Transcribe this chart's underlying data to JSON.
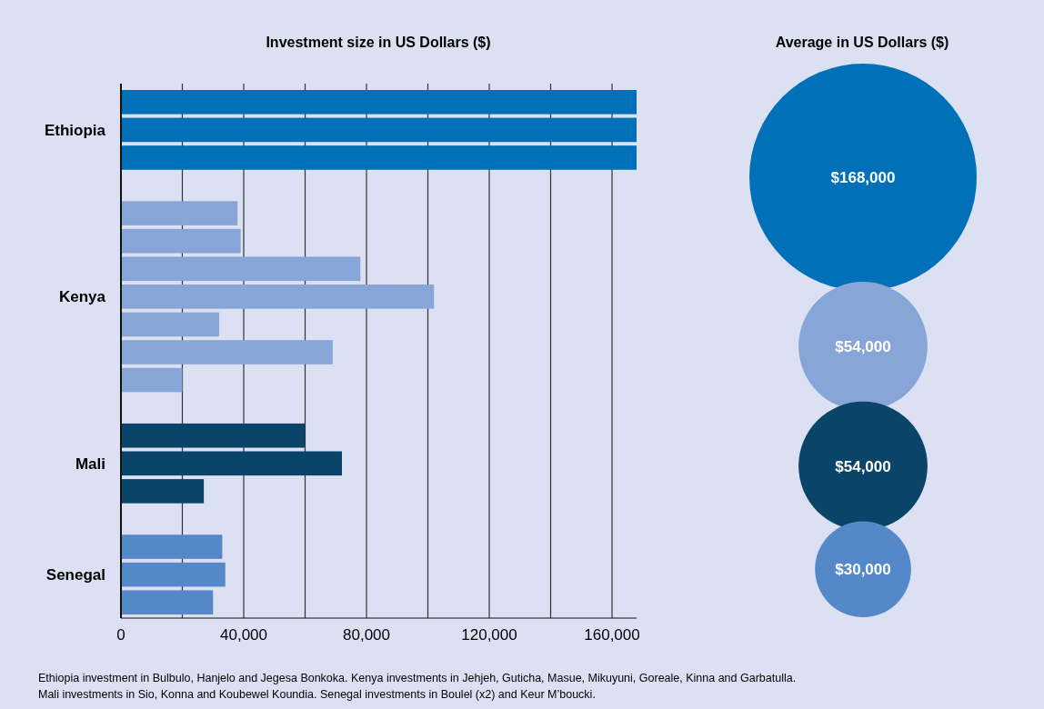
{
  "chart_data": [
    {
      "type": "bar",
      "orientation": "horizontal",
      "title": "Investment size in US Dollars ($)",
      "categories": [
        null,
        "Ethiopia",
        null,
        null,
        null,
        null,
        null,
        "Kenya",
        null,
        null,
        null,
        null,
        null,
        "Mali",
        null,
        null,
        null,
        "Senegal",
        null
      ],
      "values": [
        168000,
        168000,
        168000,
        null,
        38000,
        39000,
        78000,
        102000,
        32000,
        69000,
        20000,
        null,
        60000,
        72000,
        27000,
        null,
        33000,
        34000,
        30000
      ],
      "colors": [
        "#0070b8",
        "#0070b8",
        "#0070b8",
        null,
        "#87a5d6",
        "#87a5d6",
        "#87a5d6",
        "#87a5d6",
        "#87a5d6",
        "#87a5d6",
        "#87a5d6",
        null,
        "#0b4469",
        "#0b4469",
        "#0b4469",
        null,
        "#5588c8",
        "#5588c8",
        "#5588c8"
      ],
      "xlim": [
        0,
        168000
      ],
      "xticks": [
        0,
        {
          "value": 20000,
          "label": null
        },
        {
          "value": 40000,
          "label": "40,000"
        },
        {
          "value": 60000,
          "label": null
        },
        {
          "value": 80000,
          "label": "80,000"
        },
        {
          "value": 100000,
          "label": null
        },
        {
          "value": 120000,
          "label": "120,000"
        },
        {
          "value": 140000,
          "label": null
        },
        {
          "value": 160000,
          "label": "160,000"
        }
      ],
      "grid": "x",
      "annotations": [
        "Ethiopia investment in Bulbulo, Hanjelo and Jegesa Bonkoka. Kenya investments in Jehjeh, Guticha, Masue, Mikuyuni, Goreale, Kinna and Garbatulla.",
        "Mali investments in Sio, Konna and Koubewel Koundia. Senegal investments in Boulel (x2) and Keur M’boucki."
      ]
    },
    {
      "type": "other",
      "title": "Average in US Dollars ($)",
      "categories": [
        null,
        null,
        null,
        null
      ],
      "values": [
        168000,
        54000,
        54000,
        30000
      ],
      "value_labels": [
        "$168,000",
        "$54,000",
        "$54,000",
        "$30,000"
      ],
      "colors": [
        "#0070b8",
        "#87a5d6",
        "#0b4469",
        "#5588c8"
      ]
    }
  ]
}
